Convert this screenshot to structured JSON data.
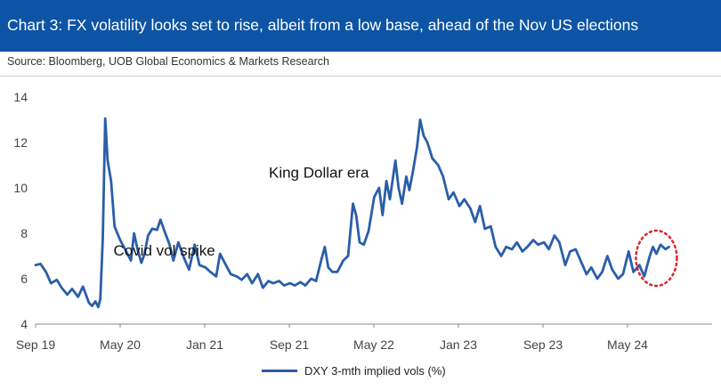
{
  "header": {
    "title": "Chart 3: FX volatility looks set to rise, albeit from a low base, ahead of the Nov US elections",
    "source": "Source: Bloomberg, UOB Global Economics & Markets Research"
  },
  "colors": {
    "header_bg": "#0d54a5",
    "series_line": "#2a5ea8",
    "highlight_circle": "#d9262b"
  },
  "chart_data": {
    "type": "line",
    "title": "Chart 3: FX volatility looks set to rise, albeit from a low base, ahead of the Nov US elections",
    "xlabel": "",
    "ylabel": "",
    "ylim": [
      4,
      14
    ],
    "yticks": [
      4,
      6,
      8,
      10,
      12,
      14
    ],
    "xticks": [
      "Sep 19",
      "May 20",
      "Jan 21",
      "Sep 21",
      "May 22",
      "Jan 23",
      "Sep 23",
      "May 24"
    ],
    "grid": false,
    "legend_position": "bottom",
    "annotations": [
      {
        "text": "Covid vol spike",
        "near": "2020-03"
      },
      {
        "text": "King Dollar era",
        "near": "2022-09"
      }
    ],
    "highlight": {
      "shape": "dotted-circle",
      "around": "2024-07"
    },
    "series": [
      {
        "name": "DXY 3-mth implied vols (%)",
        "points": [
          [
            "2019-09-01",
            6.6
          ],
          [
            "2019-09-15",
            6.65
          ],
          [
            "2019-10-01",
            6.3
          ],
          [
            "2019-10-15",
            5.8
          ],
          [
            "2019-11-01",
            5.95
          ],
          [
            "2019-11-15",
            5.6
          ],
          [
            "2019-12-01",
            5.3
          ],
          [
            "2019-12-15",
            5.55
          ],
          [
            "2020-01-01",
            5.2
          ],
          [
            "2020-01-15",
            5.65
          ],
          [
            "2020-02-01",
            4.95
          ],
          [
            "2020-02-10",
            4.8
          ],
          [
            "2020-02-20",
            5.0
          ],
          [
            "2020-02-28",
            4.75
          ],
          [
            "2020-03-05",
            5.1
          ],
          [
            "2020-03-12",
            7.8
          ],
          [
            "2020-03-19",
            13.05
          ],
          [
            "2020-03-26",
            11.2
          ],
          [
            "2020-04-05",
            10.3
          ],
          [
            "2020-04-15",
            8.3
          ],
          [
            "2020-05-01",
            7.7
          ],
          [
            "2020-05-15",
            7.3
          ],
          [
            "2020-06-01",
            6.8
          ],
          [
            "2020-06-10",
            8.0
          ],
          [
            "2020-06-20",
            7.3
          ],
          [
            "2020-07-01",
            6.7
          ],
          [
            "2020-07-10",
            7.1
          ],
          [
            "2020-07-20",
            7.9
          ],
          [
            "2020-08-01",
            8.2
          ],
          [
            "2020-08-15",
            8.15
          ],
          [
            "2020-08-25",
            8.6
          ],
          [
            "2020-09-05",
            8.1
          ],
          [
            "2020-09-20",
            7.5
          ],
          [
            "2020-10-01",
            6.8
          ],
          [
            "2020-10-15",
            7.6
          ],
          [
            "2020-11-01",
            6.9
          ],
          [
            "2020-11-15",
            6.4
          ],
          [
            "2020-12-01",
            7.5
          ],
          [
            "2020-12-15",
            6.6
          ],
          [
            "2021-01-01",
            6.5
          ],
          [
            "2021-01-15",
            6.3
          ],
          [
            "2021-02-01",
            6.1
          ],
          [
            "2021-02-12",
            7.1
          ],
          [
            "2021-03-01",
            6.6
          ],
          [
            "2021-03-15",
            6.2
          ],
          [
            "2021-04-01",
            6.1
          ],
          [
            "2021-04-15",
            5.95
          ],
          [
            "2021-05-01",
            6.2
          ],
          [
            "2021-05-15",
            5.8
          ],
          [
            "2021-06-01",
            6.2
          ],
          [
            "2021-06-15",
            5.6
          ],
          [
            "2021-07-01",
            5.9
          ],
          [
            "2021-07-15",
            5.8
          ],
          [
            "2021-08-01",
            5.9
          ],
          [
            "2021-08-15",
            5.7
          ],
          [
            "2021-09-01",
            5.8
          ],
          [
            "2021-09-15",
            5.7
          ],
          [
            "2021-10-01",
            5.85
          ],
          [
            "2021-10-15",
            5.7
          ],
          [
            "2021-11-01",
            6.0
          ],
          [
            "2021-11-15",
            5.9
          ],
          [
            "2021-12-01",
            6.9
          ],
          [
            "2021-12-10",
            7.4
          ],
          [
            "2021-12-20",
            6.5
          ],
          [
            "2022-01-01",
            6.3
          ],
          [
            "2022-01-15",
            6.3
          ],
          [
            "2022-02-01",
            6.8
          ],
          [
            "2022-02-15",
            7.0
          ],
          [
            "2022-03-01",
            9.3
          ],
          [
            "2022-03-10",
            8.8
          ],
          [
            "2022-03-20",
            7.6
          ],
          [
            "2022-04-01",
            7.5
          ],
          [
            "2022-04-15",
            8.1
          ],
          [
            "2022-05-01",
            9.6
          ],
          [
            "2022-05-15",
            10.0
          ],
          [
            "2022-05-25",
            8.8
          ],
          [
            "2022-06-05",
            10.3
          ],
          [
            "2022-06-15",
            9.5
          ],
          [
            "2022-07-01",
            11.2
          ],
          [
            "2022-07-10",
            10.0
          ],
          [
            "2022-07-20",
            9.3
          ],
          [
            "2022-08-01",
            10.5
          ],
          [
            "2022-08-10",
            9.9
          ],
          [
            "2022-08-20",
            10.7
          ],
          [
            "2022-09-01",
            11.8
          ],
          [
            "2022-09-10",
            13.0
          ],
          [
            "2022-09-20",
            12.3
          ],
          [
            "2022-10-01",
            12.0
          ],
          [
            "2022-10-15",
            11.3
          ],
          [
            "2022-11-01",
            11.0
          ],
          [
            "2022-11-15",
            10.5
          ],
          [
            "2022-12-01",
            9.5
          ],
          [
            "2022-12-15",
            9.8
          ],
          [
            "2023-01-01",
            9.2
          ],
          [
            "2023-01-15",
            9.5
          ],
          [
            "2023-02-01",
            9.1
          ],
          [
            "2023-02-15",
            8.5
          ],
          [
            "2023-03-01",
            9.2
          ],
          [
            "2023-03-15",
            8.2
          ],
          [
            "2023-04-01",
            8.3
          ],
          [
            "2023-04-15",
            7.4
          ],
          [
            "2023-05-01",
            7.0
          ],
          [
            "2023-05-15",
            7.4
          ],
          [
            "2023-06-01",
            7.3
          ],
          [
            "2023-06-15",
            7.6
          ],
          [
            "2023-07-01",
            7.2
          ],
          [
            "2023-07-15",
            7.4
          ],
          [
            "2023-08-01",
            7.7
          ],
          [
            "2023-08-15",
            7.5
          ],
          [
            "2023-09-01",
            7.6
          ],
          [
            "2023-09-15",
            7.3
          ],
          [
            "2023-10-01",
            7.9
          ],
          [
            "2023-10-15",
            7.6
          ],
          [
            "2023-11-01",
            6.6
          ],
          [
            "2023-11-15",
            7.2
          ],
          [
            "2023-12-01",
            7.3
          ],
          [
            "2023-12-15",
            6.8
          ],
          [
            "2024-01-01",
            6.2
          ],
          [
            "2024-01-15",
            6.5
          ],
          [
            "2024-02-01",
            6.0
          ],
          [
            "2024-02-15",
            6.3
          ],
          [
            "2024-03-01",
            7.0
          ],
          [
            "2024-03-15",
            6.4
          ],
          [
            "2024-04-01",
            6.0
          ],
          [
            "2024-04-15",
            6.2
          ],
          [
            "2024-05-01",
            7.2
          ],
          [
            "2024-05-15",
            6.3
          ],
          [
            "2024-06-01",
            6.6
          ],
          [
            "2024-06-15",
            6.1
          ],
          [
            "2024-07-01",
            7.0
          ],
          [
            "2024-07-10",
            7.4
          ],
          [
            "2024-07-20",
            7.1
          ],
          [
            "2024-08-01",
            7.5
          ],
          [
            "2024-08-15",
            7.3
          ],
          [
            "2024-08-25",
            7.4
          ]
        ]
      }
    ]
  }
}
